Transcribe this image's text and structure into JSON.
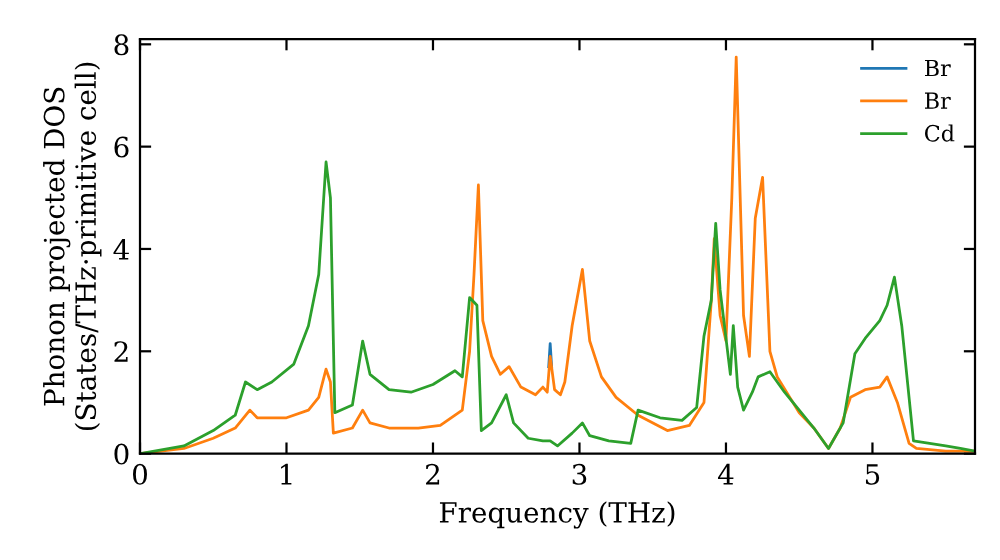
{
  "chart_data": {
    "type": "line",
    "xlabel": "Frequency (THz)",
    "ylabel": "Phonon projected DOS\n(States/THz·primitive cell)",
    "xlim": [
      0,
      5.7
    ],
    "ylim": [
      0,
      8.1
    ],
    "xticks": [
      0,
      1,
      2,
      3,
      4,
      5
    ],
    "yticks": [
      0,
      2,
      4,
      6,
      8
    ],
    "legend": "top right",
    "grid": false,
    "series": [
      {
        "name": "Br",
        "color": "#1f77b4",
        "x": [
          2.79,
          2.8,
          2.81
        ],
        "values": [
          1.7,
          2.15,
          1.7
        ]
      },
      {
        "name": "Br",
        "color": "#ff7f0e",
        "x": [
          0,
          0.3,
          0.5,
          0.65,
          0.75,
          0.8,
          1.0,
          1.15,
          1.22,
          1.27,
          1.3,
          1.32,
          1.45,
          1.52,
          1.57,
          1.7,
          1.9,
          2.05,
          2.2,
          2.25,
          2.28,
          2.31,
          2.34,
          2.4,
          2.46,
          2.52,
          2.6,
          2.7,
          2.75,
          2.78,
          2.8,
          2.83,
          2.87,
          2.9,
          2.95,
          3.02,
          3.07,
          3.15,
          3.25,
          3.4,
          3.6,
          3.75,
          3.85,
          3.9,
          3.92,
          3.96,
          4.0,
          4.04,
          4.07,
          4.12,
          4.16,
          4.2,
          4.25,
          4.3,
          4.35,
          4.5,
          4.6,
          4.7,
          4.78,
          4.85,
          4.95,
          5.05,
          5.1,
          5.17,
          5.25,
          5.3,
          5.5,
          5.7
        ],
        "values": [
          0,
          0.1,
          0.3,
          0.5,
          0.85,
          0.7,
          0.7,
          0.85,
          1.1,
          1.65,
          1.4,
          0.4,
          0.5,
          0.85,
          0.6,
          0.5,
          0.5,
          0.55,
          0.85,
          2.0,
          3.5,
          5.25,
          2.6,
          1.9,
          1.55,
          1.7,
          1.3,
          1.15,
          1.3,
          1.2,
          1.9,
          1.25,
          1.15,
          1.4,
          2.5,
          3.6,
          2.2,
          1.5,
          1.1,
          0.75,
          0.45,
          0.55,
          1.0,
          3.0,
          4.2,
          2.7,
          2.2,
          5.0,
          7.75,
          2.7,
          1.9,
          4.6,
          5.4,
          2.0,
          1.5,
          0.8,
          0.5,
          0.1,
          0.5,
          1.1,
          1.25,
          1.3,
          1.5,
          1.0,
          0.2,
          0.1,
          0.05,
          0.05
        ]
      },
      {
        "name": "Cd",
        "color": "#2ca02c",
        "x": [
          0,
          0.3,
          0.5,
          0.65,
          0.72,
          0.8,
          0.9,
          1.05,
          1.15,
          1.22,
          1.27,
          1.3,
          1.33,
          1.45,
          1.52,
          1.57,
          1.7,
          1.85,
          2.0,
          2.15,
          2.2,
          2.25,
          2.3,
          2.33,
          2.4,
          2.5,
          2.55,
          2.65,
          2.75,
          2.8,
          2.85,
          2.95,
          3.02,
          3.07,
          3.2,
          3.35,
          3.4,
          3.55,
          3.7,
          3.8,
          3.85,
          3.9,
          3.93,
          3.96,
          4.03,
          4.05,
          4.08,
          4.12,
          4.18,
          4.22,
          4.3,
          4.4,
          4.5,
          4.6,
          4.7,
          4.8,
          4.88,
          4.95,
          5.05,
          5.1,
          5.15,
          5.2,
          5.28,
          5.5,
          5.6,
          5.7
        ],
        "values": [
          0,
          0.15,
          0.45,
          0.75,
          1.4,
          1.25,
          1.4,
          1.75,
          2.5,
          3.5,
          5.7,
          5.0,
          0.8,
          0.95,
          2.2,
          1.55,
          1.25,
          1.2,
          1.35,
          1.62,
          1.5,
          3.05,
          2.9,
          0.45,
          0.6,
          1.15,
          0.6,
          0.3,
          0.25,
          0.25,
          0.15,
          0.4,
          0.6,
          0.35,
          0.25,
          0.2,
          0.85,
          0.7,
          0.65,
          0.9,
          2.3,
          3.0,
          4.5,
          3.2,
          1.55,
          2.5,
          1.3,
          0.85,
          1.2,
          1.5,
          1.6,
          1.2,
          0.85,
          0.5,
          0.1,
          0.6,
          1.95,
          2.25,
          2.6,
          2.9,
          3.45,
          2.5,
          0.25,
          0.15,
          0.1,
          0.05
        ]
      }
    ]
  }
}
